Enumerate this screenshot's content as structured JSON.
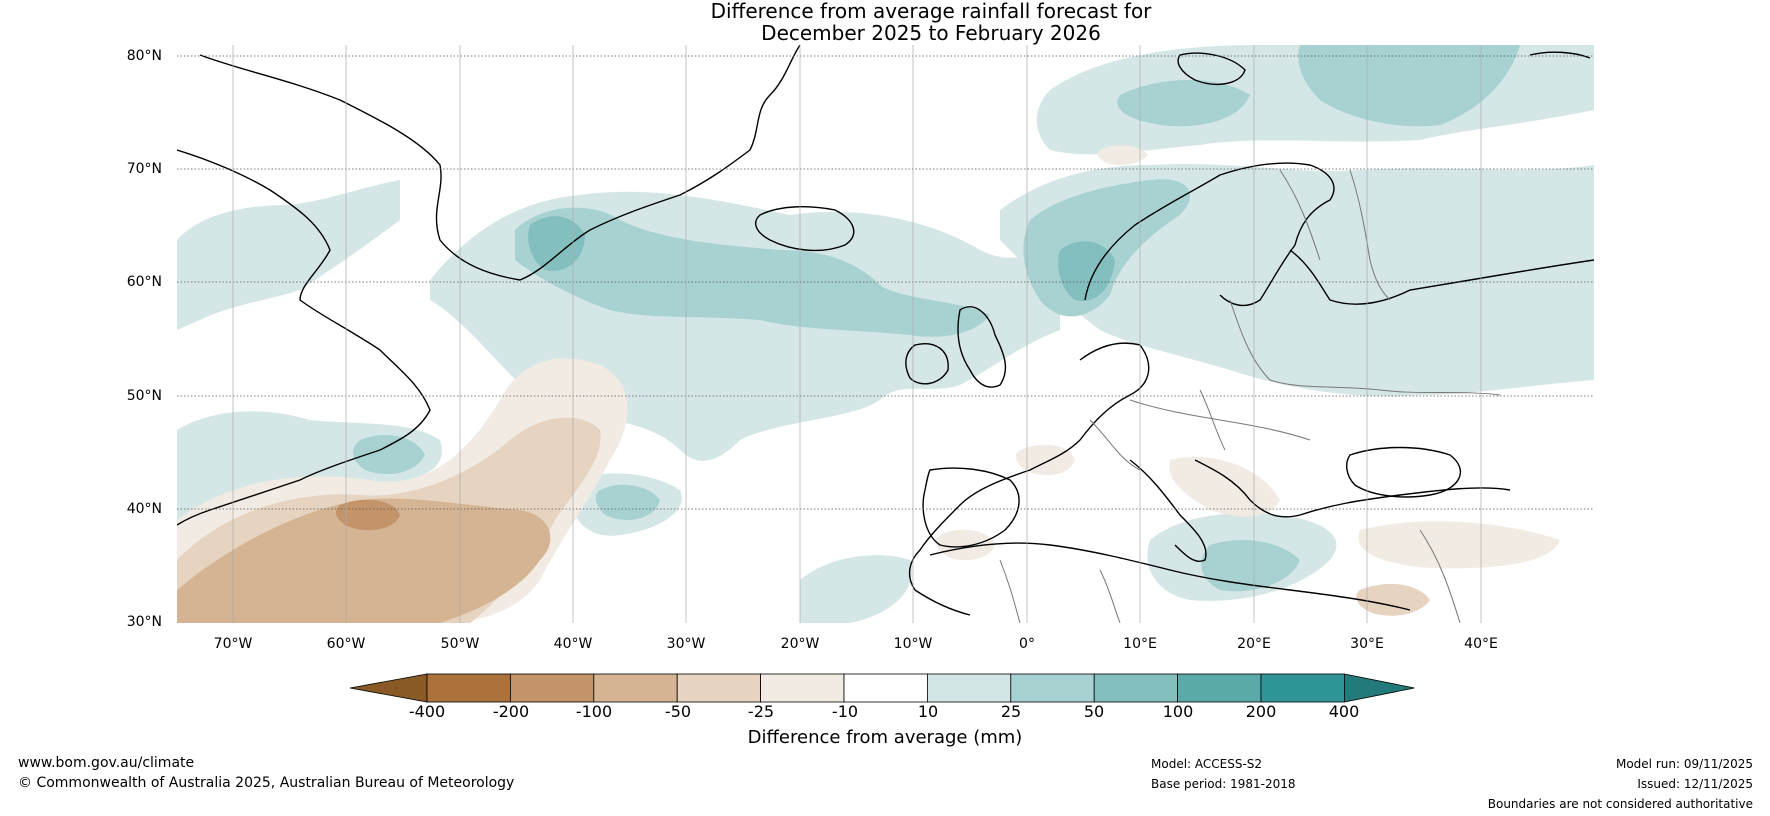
{
  "title": {
    "line1": "Difference from average rainfall forecast for",
    "line2": "December 2025 to February 2026"
  },
  "map": {
    "region": "North Atlantic and Europe",
    "lat_labels": [
      "80°N",
      "70°N",
      "60°N",
      "50°N",
      "40°N",
      "30°N"
    ],
    "lon_labels": [
      "70°W",
      "60°W",
      "50°W",
      "40°W",
      "30°W",
      "20°W",
      "10°W",
      "0°",
      "10°E",
      "20°E",
      "30°E",
      "40°E"
    ],
    "extent": {
      "lon": [
        -75,
        50
      ],
      "lat": [
        30,
        81
      ]
    }
  },
  "colorbar": {
    "title": "Difference from average (mm)",
    "ticks": [
      "-400",
      "-200",
      "-100",
      "-50",
      "-25",
      "-10",
      "10",
      "25",
      "50",
      "100",
      "200",
      "400"
    ],
    "colors": [
      "#8a5a26",
      "#ad713b",
      "#c39469",
      "#d4b493",
      "#e6d3c0",
      "#f1ebe4",
      "#ffffff",
      "#d4e7e6",
      "#a8d2d2",
      "#83bfbe",
      "#5aaaaa",
      "#2e9696",
      "#237a7a"
    ]
  },
  "footer": {
    "website": "www.bom.gov.au/climate",
    "copyright": "© Commonwealth of Australia 2025, Australian Bureau of Meteorology",
    "model": "Model: ACCESS-S2",
    "base_period": "Base period: 1981-2018",
    "model_run": "Model run: 09/11/2025",
    "issued": "Issued: 12/11/2025",
    "disclaimer": "Boundaries are not considered authoritative"
  }
}
